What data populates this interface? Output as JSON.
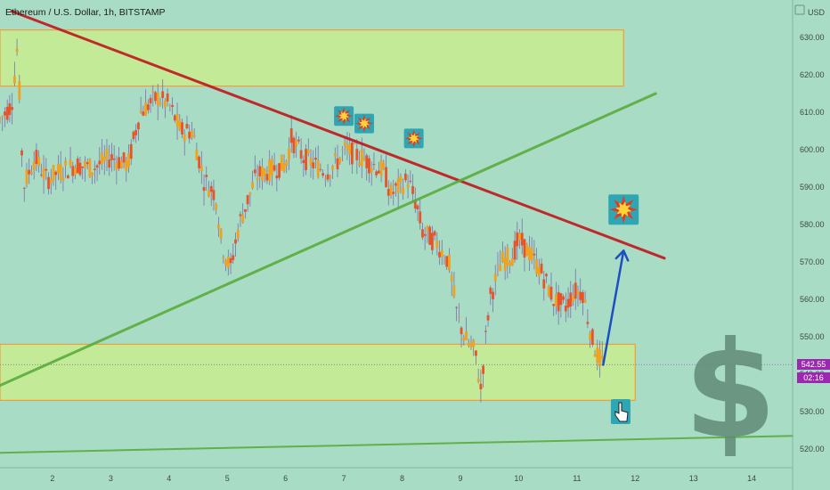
{
  "header": {
    "title": "Ethereum / U.S. Dollar, 1h, BITSTAMP"
  },
  "axis": {
    "currency_label": "USD"
  },
  "price_tag": {
    "price": "542.55",
    "countdown": "02:16"
  },
  "icons": {
    "explosion": "explosion-icon",
    "pointer": "pointing-hand-icon",
    "dollar": "dollar-sign-icon"
  },
  "colors": {
    "background": "#a9dcc5",
    "zone_fill": "#c8ec8e",
    "zone_border": "#f39c3b",
    "resistance_line": "#c0151b",
    "support_line": "#5aab3c",
    "projection_arrow": "#1b4fc2",
    "bull_candle": "#f0a11e",
    "bear_candle": "#e8542a",
    "price_tag": "#9c27b0"
  },
  "chart_data": {
    "type": "candlestick",
    "title": "Ethereum / U.S. Dollar, 1h, BITSTAMP",
    "x_tick_labels": [
      "2",
      "3",
      "4",
      "5",
      "6",
      "7",
      "8",
      "9",
      "10",
      "11",
      "12",
      "13",
      "14"
    ],
    "y_tick_labels": [
      "520.00",
      "530.00",
      "540.00",
      "550.00",
      "560.00",
      "570.00",
      "580.00",
      "590.00",
      "600.00",
      "610.00",
      "620.00",
      "630.00"
    ],
    "ylim": [
      515,
      640
    ],
    "xlim": [
      1.1,
      14.7
    ],
    "grid": false,
    "close_path": [
      [
        1.1,
        608
      ],
      [
        1.3,
        612
      ],
      [
        1.4,
        628
      ],
      [
        1.5,
        590
      ],
      [
        1.7,
        598
      ],
      [
        1.9,
        592
      ],
      [
        2.1,
        594
      ],
      [
        2.4,
        596
      ],
      [
        2.7,
        595
      ],
      [
        3.0,
        598
      ],
      [
        3.3,
        596
      ],
      [
        3.5,
        610
      ],
      [
        3.8,
        614
      ],
      [
        4.0,
        612
      ],
      [
        4.2,
        605
      ],
      [
        4.4,
        605
      ],
      [
        4.6,
        592
      ],
      [
        4.8,
        588
      ],
      [
        4.9,
        575
      ],
      [
        5.05,
        568
      ],
      [
        5.2,
        580
      ],
      [
        5.5,
        593
      ],
      [
        5.8,
        595
      ],
      [
        6.0,
        596
      ],
      [
        6.1,
        603
      ],
      [
        6.3,
        598
      ],
      [
        6.5,
        596
      ],
      [
        6.7,
        594
      ],
      [
        6.9,
        597
      ],
      [
        7.0,
        600
      ],
      [
        7.3,
        598
      ],
      [
        7.5,
        596
      ],
      [
        7.7,
        594
      ],
      [
        7.8,
        588
      ],
      [
        7.95,
        590
      ],
      [
        8.1,
        592
      ],
      [
        8.25,
        585
      ],
      [
        8.35,
        578
      ],
      [
        8.6,
        575
      ],
      [
        8.8,
        570
      ],
      [
        8.95,
        555
      ],
      [
        9.1,
        549
      ],
      [
        9.25,
        546
      ],
      [
        9.35,
        536
      ],
      [
        9.5,
        560
      ],
      [
        9.7,
        570
      ],
      [
        9.9,
        572
      ],
      [
        10.0,
        576
      ],
      [
        10.2,
        572
      ],
      [
        10.4,
        567
      ],
      [
        10.6,
        560
      ],
      [
        10.8,
        558
      ],
      [
        10.95,
        562
      ],
      [
        11.1,
        562
      ],
      [
        11.25,
        550
      ],
      [
        11.35,
        545
      ],
      [
        11.45,
        542.55
      ]
    ],
    "zones": [
      {
        "name": "resistance zone",
        "x_range": [
          1.1,
          11.8
        ],
        "y_range": [
          617,
          632
        ]
      },
      {
        "name": "support zone",
        "x_range": [
          1.1,
          12.0
        ],
        "y_range": [
          533,
          548
        ]
      }
    ],
    "trendlines": [
      {
        "name": "descending resistance",
        "from": [
          1.3,
          637
        ],
        "to": [
          12.5,
          571
        ]
      },
      {
        "name": "ascending support",
        "from": [
          1.1,
          537
        ],
        "to": [
          12.35,
          615
        ]
      },
      {
        "name": "lower support",
        "from": [
          1.1,
          519
        ],
        "to": [
          14.7,
          523.5
        ]
      }
    ],
    "projection": {
      "from": [
        11.45,
        542.5
      ],
      "to": [
        11.8,
        573
      ]
    },
    "markers": [
      {
        "icon": "explosion",
        "x": 7.0,
        "y": 609
      },
      {
        "icon": "explosion",
        "x": 7.35,
        "y": 607
      },
      {
        "icon": "explosion",
        "x": 8.2,
        "y": 603
      },
      {
        "icon": "explosion",
        "x": 11.8,
        "y": 584
      },
      {
        "icon": "pointer",
        "x": 11.75,
        "y": 530
      }
    ],
    "last_price": 542.55
  }
}
